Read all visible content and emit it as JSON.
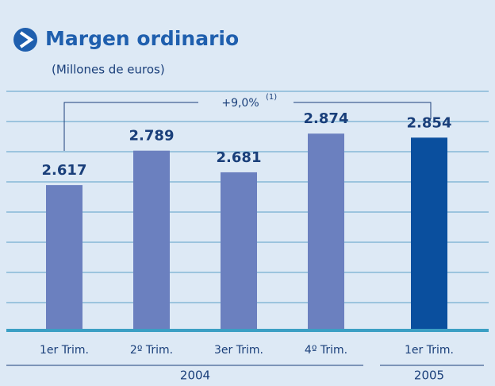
{
  "chart_data": {
    "type": "bar",
    "title": "Margen ordinario",
    "subtitle": "(Millones de euros)",
    "annotation": "+9,0%",
    "annotation_note": "(1)",
    "categories": [
      "1er Trim.",
      "2º Trim.",
      "3er Trim.",
      "4º Trim.",
      "1er Trim."
    ],
    "groups": [
      {
        "label": "2004",
        "count": 4
      },
      {
        "label": "2005",
        "count": 1
      }
    ],
    "values": [
      2617,
      2789,
      2681,
      2874,
      2854
    ],
    "value_labels": [
      "2.617",
      "2.789",
      "2.681",
      "2.874",
      "2.854"
    ],
    "colors": [
      "#6b80bf",
      "#6b80bf",
      "#6b80bf",
      "#6b80bf",
      "#0a4f9e"
    ],
    "ylim": [
      1900,
      3085
    ]
  }
}
